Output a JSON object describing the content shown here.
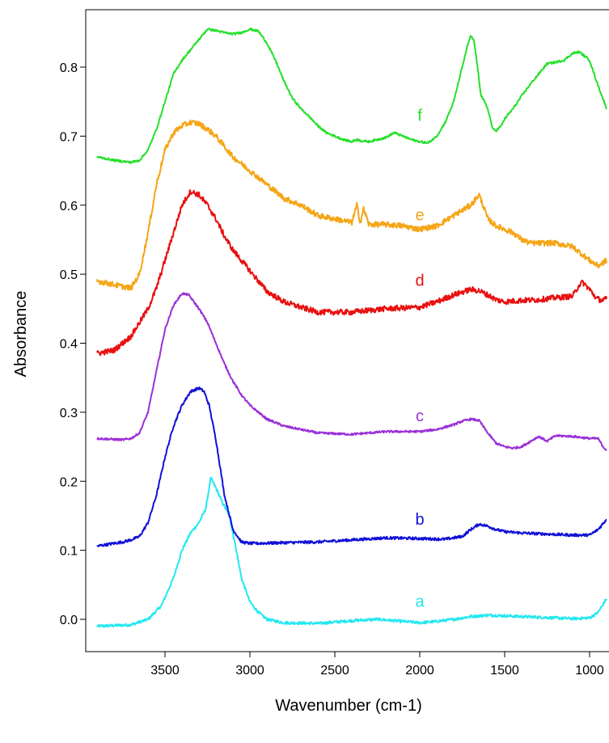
{
  "chart_data": {
    "type": "line",
    "title": "",
    "xlabel": "Wavenumber (cm-1)",
    "ylabel": "Absorbance",
    "xlim": [
      3900,
      900
    ],
    "ylim": [
      -0.07,
      0.87
    ],
    "x_reversed": true,
    "grid": false,
    "legend": "none (curves labeled inline)",
    "x_ticks": [
      3500,
      3000,
      2500,
      2000,
      1500,
      1000
    ],
    "x_tick_labels": [
      "3500",
      "3000",
      "2500",
      "2000",
      "1500",
      "1000"
    ],
    "y_ticks": [
      0.0,
      0.1,
      0.2,
      0.3,
      0.4,
      0.5,
      0.6,
      0.7,
      0.8
    ],
    "y_tick_labels": [
      "0.0",
      "0.1",
      "0.2",
      "0.3",
      "0.4",
      "0.5",
      "0.6",
      "0.7",
      "0.8"
    ],
    "series": [
      {
        "name": "a",
        "color": "#22e8f0",
        "label_at": [
          2000,
          0.018
        ],
        "noise": 0.002,
        "x": [
          3900,
          3700,
          3600,
          3520,
          3450,
          3400,
          3350,
          3300,
          3260,
          3230,
          3200,
          3160,
          3120,
          3080,
          3050,
          3000,
          2950,
          2900,
          2800,
          2600,
          2400,
          2250,
          2100,
          2000,
          1900,
          1800,
          1700,
          1600,
          1500,
          1400,
          1300,
          1200,
          1100,
          1000,
          950,
          920,
          900
        ],
        "y": [
          -0.01,
          -0.008,
          0.0,
          0.02,
          0.06,
          0.1,
          0.125,
          0.14,
          0.16,
          0.205,
          0.19,
          0.168,
          0.15,
          0.1,
          0.06,
          0.025,
          0.01,
          0.0,
          -0.005,
          -0.006,
          -0.002,
          0.0,
          -0.003,
          -0.005,
          -0.003,
          0.0,
          0.004,
          0.006,
          0.005,
          0.004,
          0.003,
          0.002,
          0.001,
          0.002,
          0.01,
          0.022,
          0.03
        ]
      },
      {
        "name": "b",
        "color": "#1010d8",
        "label_at": [
          2000,
          0.137
        ],
        "noise": 0.002,
        "x": [
          3900,
          3750,
          3700,
          3650,
          3600,
          3550,
          3500,
          3450,
          3400,
          3350,
          3300,
          3270,
          3240,
          3200,
          3150,
          3100,
          3050,
          3000,
          2950,
          2800,
          2600,
          2400,
          2200,
          2000,
          1850,
          1750,
          1700,
          1650,
          1600,
          1550,
          1500,
          1400,
          1300,
          1200,
          1100,
          1000,
          950,
          900
        ],
        "y": [
          0.106,
          0.112,
          0.115,
          0.12,
          0.14,
          0.18,
          0.235,
          0.28,
          0.31,
          0.33,
          0.335,
          0.33,
          0.31,
          0.26,
          0.18,
          0.13,
          0.112,
          0.11,
          0.11,
          0.111,
          0.112,
          0.115,
          0.118,
          0.117,
          0.116,
          0.12,
          0.13,
          0.138,
          0.135,
          0.13,
          0.127,
          0.125,
          0.124,
          0.123,
          0.122,
          0.122,
          0.13,
          0.145
        ]
      },
      {
        "name": "c",
        "color": "#9a30d8",
        "label_at": [
          2000,
          0.287
        ],
        "noise": 0.0015,
        "x": [
          3900,
          3750,
          3700,
          3650,
          3600,
          3550,
          3500,
          3450,
          3400,
          3360,
          3330,
          3300,
          3250,
          3200,
          3150,
          3100,
          3050,
          3000,
          2950,
          2900,
          2800,
          2700,
          2600,
          2400,
          2200,
          2000,
          1900,
          1800,
          1750,
          1700,
          1650,
          1600,
          1550,
          1500,
          1450,
          1400,
          1300,
          1250,
          1200,
          1100,
          1000,
          950,
          920,
          900
        ],
        "y": [
          0.262,
          0.26,
          0.262,
          0.27,
          0.3,
          0.36,
          0.42,
          0.455,
          0.472,
          0.47,
          0.46,
          0.45,
          0.43,
          0.4,
          0.37,
          0.345,
          0.325,
          0.31,
          0.3,
          0.29,
          0.28,
          0.275,
          0.27,
          0.268,
          0.272,
          0.272,
          0.275,
          0.282,
          0.287,
          0.29,
          0.288,
          0.27,
          0.255,
          0.25,
          0.248,
          0.25,
          0.265,
          0.258,
          0.266,
          0.265,
          0.262,
          0.262,
          0.25,
          0.245
        ]
      },
      {
        "name": "d",
        "color": "#e81010",
        "label_at": [
          2000,
          0.483
        ],
        "noise": 0.004,
        "x": [
          3900,
          3800,
          3750,
          3700,
          3650,
          3600,
          3550,
          3500,
          3450,
          3400,
          3350,
          3300,
          3250,
          3200,
          3150,
          3100,
          3050,
          3000,
          2950,
          2900,
          2800,
          2700,
          2600,
          2400,
          2200,
          2000,
          1900,
          1800,
          1700,
          1650,
          1600,
          1550,
          1500,
          1400,
          1300,
          1200,
          1100,
          1060,
          1040,
          1000,
          960,
          930,
          900
        ],
        "y": [
          0.385,
          0.39,
          0.4,
          0.41,
          0.43,
          0.45,
          0.48,
          0.52,
          0.56,
          0.6,
          0.62,
          0.615,
          0.6,
          0.58,
          0.555,
          0.535,
          0.52,
          0.505,
          0.49,
          0.475,
          0.46,
          0.452,
          0.445,
          0.445,
          0.45,
          0.452,
          0.46,
          0.47,
          0.478,
          0.476,
          0.47,
          0.463,
          0.46,
          0.462,
          0.463,
          0.466,
          0.468,
          0.485,
          0.488,
          0.478,
          0.465,
          0.462,
          0.464
        ]
      },
      {
        "name": "e",
        "color": "#f5a516",
        "label_at": [
          2000,
          0.578
        ],
        "noise": 0.004,
        "x": [
          3900,
          3800,
          3750,
          3700,
          3650,
          3600,
          3550,
          3500,
          3450,
          3400,
          3350,
          3300,
          3250,
          3200,
          3150,
          3100,
          3050,
          3000,
          2950,
          2900,
          2800,
          2700,
          2600,
          2500,
          2400,
          2370,
          2350,
          2330,
          2300,
          2200,
          2100,
          2000,
          1900,
          1800,
          1700,
          1650,
          1620,
          1600,
          1550,
          1500,
          1450,
          1400,
          1350,
          1300,
          1200,
          1100,
          1000,
          950,
          900
        ],
        "y": [
          0.49,
          0.485,
          0.482,
          0.48,
          0.5,
          0.56,
          0.63,
          0.68,
          0.705,
          0.715,
          0.72,
          0.718,
          0.71,
          0.7,
          0.685,
          0.67,
          0.66,
          0.65,
          0.64,
          0.63,
          0.61,
          0.6,
          0.585,
          0.58,
          0.575,
          0.6,
          0.575,
          0.595,
          0.572,
          0.572,
          0.57,
          0.565,
          0.57,
          0.585,
          0.6,
          0.615,
          0.595,
          0.58,
          0.57,
          0.565,
          0.56,
          0.55,
          0.545,
          0.545,
          0.545,
          0.54,
          0.52,
          0.512,
          0.52
        ]
      },
      {
        "name": "f",
        "color": "#25e02a",
        "label_at": [
          2000,
          0.722
        ],
        "noise": 0.0015,
        "x": [
          3900,
          3800,
          3700,
          3650,
          3600,
          3550,
          3500,
          3450,
          3400,
          3350,
          3300,
          3250,
          3200,
          3150,
          3100,
          3050,
          3000,
          2950,
          2900,
          2850,
          2800,
          2750,
          2700,
          2650,
          2600,
          2550,
          2500,
          2450,
          2400,
          2370,
          2340,
          2300,
          2250,
          2200,
          2150,
          2100,
          2050,
          2000,
          1950,
          1900,
          1850,
          1800,
          1760,
          1720,
          1700,
          1680,
          1660,
          1640,
          1600,
          1570,
          1550,
          1520,
          1500,
          1450,
          1400,
          1350,
          1300,
          1250,
          1200,
          1150,
          1100,
          1060,
          1000,
          960,
          930,
          900
        ],
        "y": [
          0.67,
          0.665,
          0.662,
          0.665,
          0.68,
          0.71,
          0.75,
          0.79,
          0.81,
          0.825,
          0.84,
          0.855,
          0.853,
          0.85,
          0.848,
          0.85,
          0.855,
          0.852,
          0.835,
          0.81,
          0.78,
          0.755,
          0.74,
          0.728,
          0.715,
          0.705,
          0.7,
          0.695,
          0.692,
          0.695,
          0.693,
          0.692,
          0.695,
          0.698,
          0.705,
          0.7,
          0.695,
          0.692,
          0.69,
          0.7,
          0.72,
          0.75,
          0.79,
          0.83,
          0.845,
          0.838,
          0.8,
          0.76,
          0.74,
          0.71,
          0.708,
          0.715,
          0.725,
          0.74,
          0.758,
          0.775,
          0.79,
          0.805,
          0.807,
          0.81,
          0.82,
          0.822,
          0.81,
          0.78,
          0.76,
          0.74
        ]
      }
    ]
  }
}
